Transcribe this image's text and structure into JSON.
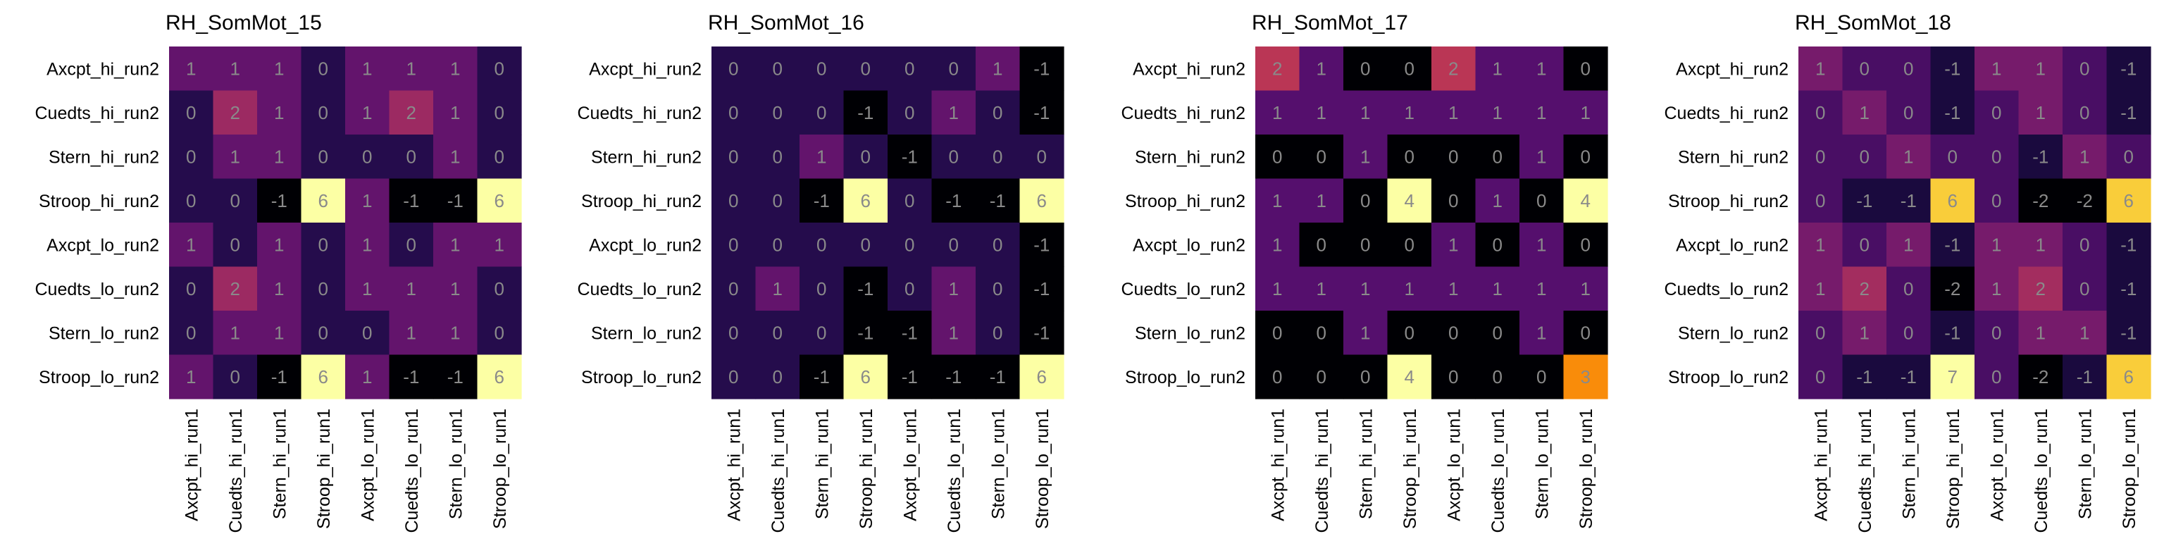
{
  "chart_data": [
    {
      "type": "heatmap",
      "title": "RH_SomMot_15",
      "row_labels": [
        "Axcpt_hi_run2",
        "Cuedts_hi_run2",
        "Stern_hi_run2",
        "Stroop_hi_run2",
        "Axcpt_lo_run2",
        "Cuedts_lo_run2",
        "Stern_lo_run2",
        "Stroop_lo_run2"
      ],
      "col_labels": [
        "Axcpt_hi_run1",
        "Cuedts_hi_run1",
        "Stern_hi_run1",
        "Stroop_hi_run1",
        "Axcpt_lo_run1",
        "Cuedts_lo_run1",
        "Stern_lo_run1",
        "Stroop_lo_run1"
      ],
      "values": [
        [
          1,
          1,
          1,
          0,
          1,
          1,
          1,
          0
        ],
        [
          0,
          2,
          1,
          0,
          1,
          2,
          1,
          0
        ],
        [
          0,
          1,
          1,
          0,
          0,
          0,
          1,
          0
        ],
        [
          0,
          0,
          -1,
          6,
          1,
          -1,
          -1,
          6
        ],
        [
          1,
          0,
          1,
          0,
          1,
          0,
          1,
          1
        ],
        [
          0,
          2,
          1,
          0,
          1,
          1,
          1,
          0
        ],
        [
          0,
          1,
          1,
          0,
          0,
          1,
          1,
          0
        ],
        [
          1,
          0,
          -1,
          6,
          1,
          -1,
          -1,
          6
        ]
      ]
    },
    {
      "type": "heatmap",
      "title": "RH_SomMot_16",
      "row_labels": [
        "Axcpt_hi_run2",
        "Cuedts_hi_run2",
        "Stern_hi_run2",
        "Stroop_hi_run2",
        "Axcpt_lo_run2",
        "Cuedts_lo_run2",
        "Stern_lo_run2",
        "Stroop_lo_run2"
      ],
      "col_labels": [
        "Axcpt_hi_run1",
        "Cuedts_hi_run1",
        "Stern_hi_run1",
        "Stroop_hi_run1",
        "Axcpt_lo_run1",
        "Cuedts_lo_run1",
        "Stern_lo_run1",
        "Stroop_lo_run1"
      ],
      "values": [
        [
          0,
          0,
          0,
          0,
          0,
          0,
          1,
          -1
        ],
        [
          0,
          0,
          0,
          -1,
          0,
          1,
          0,
          -1
        ],
        [
          0,
          0,
          1,
          0,
          -1,
          0,
          0,
          0
        ],
        [
          0,
          0,
          -1,
          6,
          0,
          -1,
          -1,
          6
        ],
        [
          0,
          0,
          0,
          0,
          0,
          0,
          0,
          -1
        ],
        [
          0,
          1,
          0,
          -1,
          0,
          1,
          0,
          -1
        ],
        [
          0,
          0,
          0,
          -1,
          -1,
          1,
          0,
          -1
        ],
        [
          0,
          0,
          -1,
          6,
          -1,
          -1,
          -1,
          6
        ]
      ]
    },
    {
      "type": "heatmap",
      "title": "RH_SomMot_17",
      "row_labels": [
        "Axcpt_hi_run2",
        "Cuedts_hi_run2",
        "Stern_hi_run2",
        "Stroop_hi_run2",
        "Axcpt_lo_run2",
        "Cuedts_lo_run2",
        "Stern_lo_run2",
        "Stroop_lo_run2"
      ],
      "col_labels": [
        "Axcpt_hi_run1",
        "Cuedts_hi_run1",
        "Stern_hi_run1",
        "Stroop_hi_run1",
        "Axcpt_lo_run1",
        "Cuedts_lo_run1",
        "Stern_lo_run1",
        "Stroop_lo_run1"
      ],
      "values": [
        [
          2,
          1,
          0,
          0,
          2,
          1,
          1,
          0
        ],
        [
          1,
          1,
          1,
          1,
          1,
          1,
          1,
          1
        ],
        [
          0,
          0,
          1,
          0,
          0,
          0,
          1,
          0
        ],
        [
          1,
          1,
          0,
          4,
          0,
          1,
          0,
          4
        ],
        [
          1,
          0,
          0,
          0,
          1,
          0,
          1,
          0
        ],
        [
          1,
          1,
          1,
          1,
          1,
          1,
          1,
          1
        ],
        [
          0,
          0,
          1,
          0,
          0,
          0,
          1,
          0
        ],
        [
          0,
          0,
          0,
          4,
          0,
          0,
          0,
          3
        ]
      ]
    },
    {
      "type": "heatmap",
      "title": "RH_SomMot_18",
      "row_labels": [
        "Axcpt_hi_run2",
        "Cuedts_hi_run2",
        "Stern_hi_run2",
        "Stroop_hi_run2",
        "Axcpt_lo_run2",
        "Cuedts_lo_run2",
        "Stern_lo_run2",
        "Stroop_lo_run2"
      ],
      "col_labels": [
        "Axcpt_hi_run1",
        "Cuedts_hi_run1",
        "Stern_hi_run1",
        "Stroop_hi_run1",
        "Axcpt_lo_run1",
        "Cuedts_lo_run1",
        "Stern_lo_run1",
        "Stroop_lo_run1"
      ],
      "values": [
        [
          1,
          0,
          0,
          -1,
          1,
          1,
          0,
          -1
        ],
        [
          0,
          1,
          0,
          -1,
          0,
          1,
          0,
          -1
        ],
        [
          0,
          0,
          1,
          0,
          0,
          -1,
          1,
          0
        ],
        [
          0,
          -1,
          -1,
          6,
          0,
          -2,
          -2,
          6
        ],
        [
          1,
          0,
          1,
          -1,
          1,
          1,
          0,
          -1
        ],
        [
          1,
          2,
          0,
          -2,
          1,
          2,
          0,
          -1
        ],
        [
          0,
          1,
          0,
          -1,
          0,
          1,
          1,
          -1
        ],
        [
          0,
          -1,
          -1,
          7,
          0,
          -2,
          -1,
          6
        ]
      ]
    }
  ]
}
